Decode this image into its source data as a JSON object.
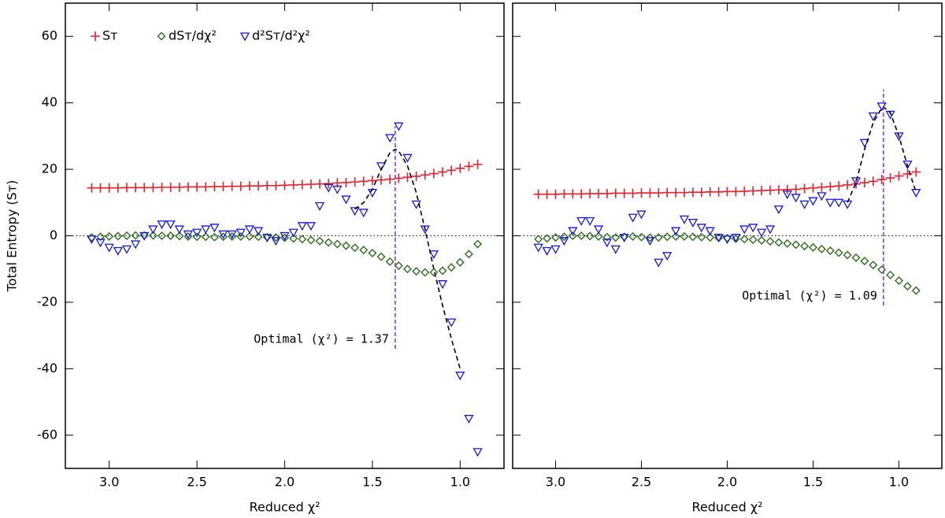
{
  "chart_data": [
    {
      "type": "scatter",
      "xlabel": "Reduced χ²",
      "ylabel": "Total Entropy (Sᴛ)",
      "xlim": [
        3.25,
        0.75
      ],
      "ylim": [
        -70,
        70
      ],
      "xticks": [
        {
          "value": 3,
          "label": "3.0"
        },
        {
          "value": 2.5,
          "label": "2.5"
        },
        {
          "value": 2,
          "label": "2.0"
        },
        {
          "value": 1.5,
          "label": "1.5"
        },
        {
          "value": 1,
          "label": "1.0"
        }
      ],
      "yticks": [
        -60,
        -40,
        -20,
        0,
        20,
        40,
        60
      ],
      "legend": "upper left",
      "refline": 0,
      "x": [
        3.1,
        3.05,
        3.0,
        2.95,
        2.9,
        2.85,
        2.8,
        2.75,
        2.7,
        2.65,
        2.6,
        2.55,
        2.5,
        2.45,
        2.4,
        2.35,
        2.3,
        2.25,
        2.2,
        2.15,
        2.1,
        2.05,
        2.0,
        1.95,
        1.9,
        1.85,
        1.8,
        1.75,
        1.7,
        1.65,
        1.6,
        1.55,
        1.5,
        1.45,
        1.4,
        1.35,
        1.3,
        1.25,
        1.2,
        1.15,
        1.1,
        1.05,
        1.0,
        0.95,
        0.9
      ],
      "series": [
        {
          "name": "Sᴛ",
          "marker": "plus",
          "color": "#e8202a",
          "values": [
            14.4,
            14.4,
            14.4,
            14.4,
            14.5,
            14.5,
            14.5,
            14.5,
            14.6,
            14.6,
            14.6,
            14.7,
            14.7,
            14.7,
            14.8,
            14.8,
            14.9,
            14.9,
            15.0,
            15.0,
            15.1,
            15.1,
            15.2,
            15.3,
            15.4,
            15.5,
            15.6,
            15.7,
            15.9,
            16.0,
            16.2,
            16.4,
            16.6,
            16.8,
            17.0,
            17.3,
            17.6,
            17.9,
            18.3,
            18.7,
            19.2,
            19.7,
            20.3,
            20.9,
            21.5
          ]
        },
        {
          "name": "dSᴛ/dχ²",
          "marker": "diamond",
          "color": "#2d6b1a",
          "values": [
            -0.5,
            -0.3,
            -0.2,
            -0.1,
            0,
            0.1,
            0.1,
            0.1,
            0,
            0,
            -0.1,
            -0.2,
            -0.3,
            -0.3,
            -0.4,
            -0.3,
            -0.2,
            -0.2,
            -0.2,
            -0.3,
            -0.4,
            -0.5,
            -0.6,
            -0.8,
            -1.0,
            -1.3,
            -1.6,
            -2.0,
            -2.5,
            -3.0,
            -3.6,
            -4.3,
            -5.2,
            -6.3,
            -7.8,
            -9.0,
            -10.0,
            -10.7,
            -11.0,
            -11.0,
            -10.5,
            -9.5,
            -8.0,
            -5.5,
            -2.5
          ]
        },
        {
          "name": "d²Sᴛ/d²χ²",
          "marker": "triangle",
          "color": "#1414e0",
          "values": [
            -1,
            -2,
            -3.5,
            -4.5,
            -4,
            -2.5,
            0,
            2,
            3.5,
            3.5,
            2,
            0.5,
            1,
            2,
            2.5,
            0.5,
            0.5,
            1,
            2,
            1.5,
            -0.5,
            -1.5,
            0,
            1,
            3,
            3,
            9,
            14.5,
            14,
            11,
            7.5,
            7,
            13,
            21,
            29.5,
            33,
            23.5,
            9.5,
            2,
            -5.5,
            -14.5,
            -26,
            -42,
            -55,
            -65
          ]
        }
      ],
      "fit": {
        "x": [
          1.6,
          1.55,
          1.5,
          1.45,
          1.4,
          1.37,
          1.35,
          1.3,
          1.25,
          1.2,
          1.15,
          1.1,
          1.05,
          1.0
        ],
        "values": [
          8,
          10,
          14,
          20,
          25,
          26,
          25.5,
          21,
          13,
          2,
          -10,
          -21,
          -31,
          -40
        ]
      },
      "vline": {
        "x": 1.37,
        "ylim": [
          -34,
          33
        ]
      },
      "annotation": "Optimal (χ²) = 1.37"
    },
    {
      "type": "scatter",
      "xlabel": "Reduced χ²",
      "xlim": [
        3.25,
        0.75
      ],
      "ylim": [
        -70,
        70
      ],
      "xticks": [
        {
          "value": 3,
          "label": "3.0"
        },
        {
          "value": 2.5,
          "label": "2.5"
        },
        {
          "value": 2,
          "label": "2.0"
        },
        {
          "value": 1.5,
          "label": "1.5"
        },
        {
          "value": 1,
          "label": "1.0"
        }
      ],
      "yticks": [
        -60,
        -40,
        -20,
        0,
        20,
        40,
        60
      ],
      "refline": 0,
      "x": [
        3.1,
        3.05,
        3.0,
        2.95,
        2.9,
        2.85,
        2.8,
        2.75,
        2.7,
        2.65,
        2.6,
        2.55,
        2.5,
        2.45,
        2.4,
        2.35,
        2.3,
        2.25,
        2.2,
        2.15,
        2.1,
        2.05,
        2.0,
        1.95,
        1.9,
        1.85,
        1.8,
        1.75,
        1.7,
        1.65,
        1.6,
        1.55,
        1.5,
        1.45,
        1.4,
        1.35,
        1.3,
        1.25,
        1.2,
        1.15,
        1.1,
        1.05,
        1.0,
        0.95,
        0.9
      ],
      "series": [
        {
          "marker": "plus",
          "color": "#e8202a",
          "values": [
            12.5,
            12.5,
            12.5,
            12.6,
            12.6,
            12.6,
            12.7,
            12.7,
            12.7,
            12.8,
            12.8,
            12.8,
            12.9,
            12.9,
            12.9,
            13.0,
            13.0,
            13.0,
            13.1,
            13.1,
            13.2,
            13.2,
            13.3,
            13.3,
            13.4,
            13.5,
            13.6,
            13.7,
            13.8,
            13.9,
            14.0,
            14.2,
            14.4,
            14.6,
            14.8,
            15.0,
            15.3,
            15.6,
            16.0,
            16.4,
            16.9,
            17.4,
            18.0,
            18.6,
            19.2
          ]
        },
        {
          "marker": "diamond",
          "color": "#2d6b1a",
          "values": [
            -1,
            -0.8,
            -0.5,
            -0.3,
            0,
            0,
            -0.1,
            -0.2,
            -0.4,
            -0.5,
            -0.3,
            -0.2,
            -0.4,
            -0.6,
            -0.5,
            -0.3,
            -0.2,
            -0.2,
            -0.3,
            -0.4,
            -0.5,
            -0.6,
            -0.7,
            -0.9,
            -1.0,
            -1.2,
            -1.4,
            -1.7,
            -2.0,
            -2.3,
            -2.7,
            -3.1,
            -3.5,
            -4.0,
            -4.5,
            -5.1,
            -5.8,
            -6.6,
            -7.6,
            -8.8,
            -10.2,
            -11.8,
            -13.5,
            -15.2,
            -16.5
          ]
        },
        {
          "marker": "triangle",
          "color": "#1414e0",
          "values": [
            -3.5,
            -4.5,
            -4,
            -1.5,
            1.5,
            4.5,
            4.5,
            2,
            -2,
            -4,
            -0.5,
            5.5,
            6.5,
            -1.5,
            -8,
            -6,
            1.5,
            5,
            4,
            2.5,
            1.5,
            -0.5,
            -1,
            -0.5,
            2,
            2.5,
            1,
            2,
            8,
            12.5,
            11.5,
            9.5,
            10.5,
            12,
            10,
            10,
            9.5,
            16.5,
            28,
            36,
            39,
            36.5,
            30,
            21.5,
            13
          ]
        }
      ],
      "fit": {
        "x": [
          1.3,
          1.25,
          1.2,
          1.15,
          1.1,
          1.09,
          1.05,
          1.0,
          0.95,
          0.9
        ],
        "values": [
          10,
          16,
          26,
          34,
          38.5,
          38.8,
          37,
          30,
          21,
          13
        ]
      },
      "vline": {
        "x": 1.09,
        "ylim": [
          -21,
          44
        ]
      },
      "annotation": "Optimal (χ²) = 1.09"
    }
  ]
}
